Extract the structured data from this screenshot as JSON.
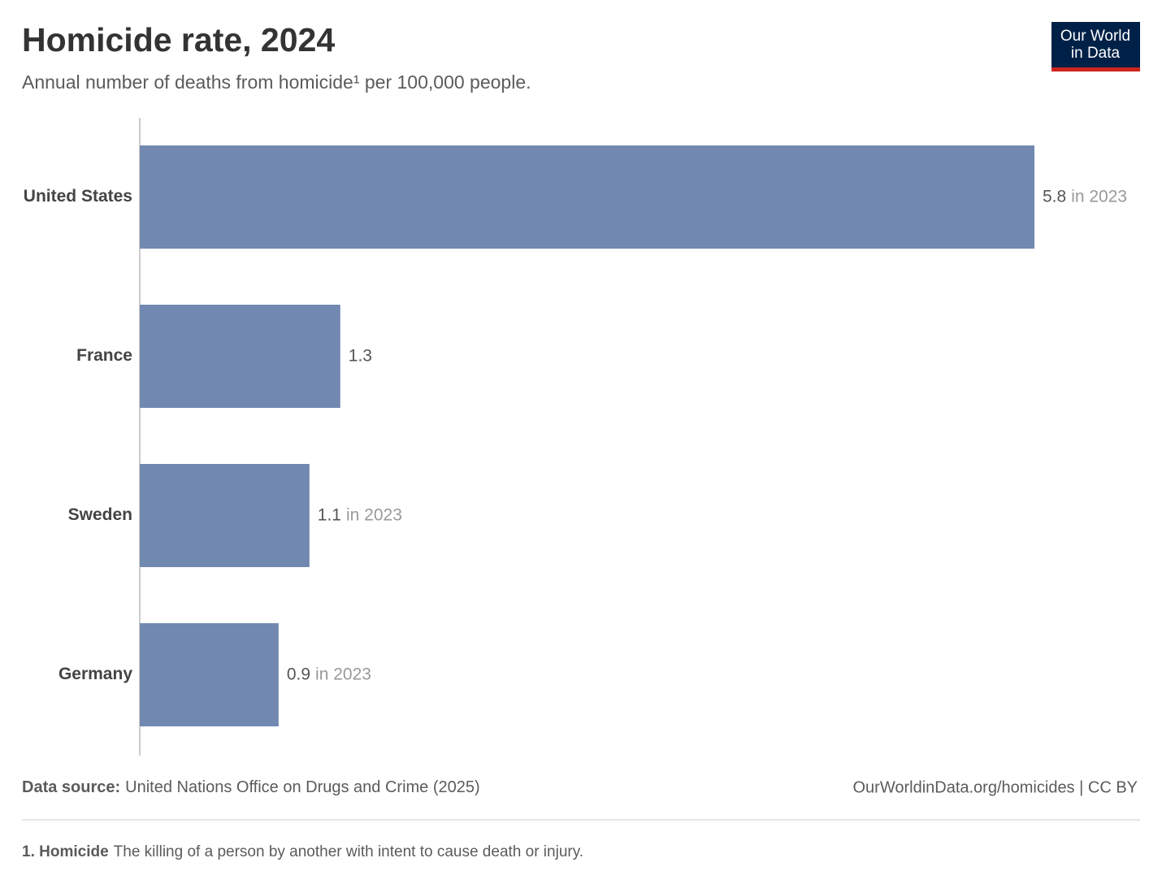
{
  "chart_data": {
    "type": "hbar",
    "title": "Homicide rate, 2024",
    "subtitle": "Annual number of deaths from homicide¹ per 100,000 people.",
    "categories": [
      "United States",
      "France",
      "Sweden",
      "Germany"
    ],
    "values": [
      5.8,
      1.3,
      1.1,
      0.9
    ],
    "value_notes": [
      "in 2023",
      null,
      "in 2023",
      "in 2023"
    ],
    "color": "#7189b0",
    "xlim": [
      0,
      5.8
    ],
    "logo": [
      "Our World",
      "in Data"
    ],
    "source_label": "Data source:",
    "source": "United Nations Office on Drugs and Crime (2025)",
    "url": "OurWorldinData.org/homicides | CC BY",
    "footnote_term": "1. Homicide",
    "footnote": "The killing of a person by another with intent to cause death or injury."
  }
}
